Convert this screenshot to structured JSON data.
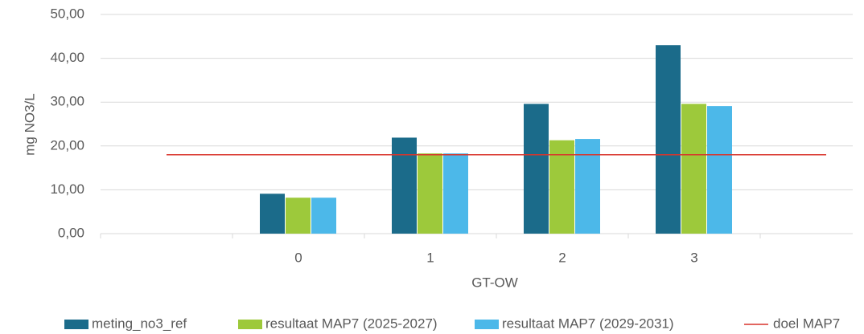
{
  "chart_data": {
    "type": "bar",
    "categories": [
      null,
      "0",
      "1",
      "2",
      "3",
      null
    ],
    "series": [
      {
        "name": "meting_no3_ref",
        "color": "#1b6b8a",
        "values": [
          null,
          9.1,
          21.9,
          29.6,
          43.0,
          null
        ]
      },
      {
        "name": "resultaat MAP7 (2025-2027)",
        "color": "#9dc93b",
        "values": [
          null,
          8.2,
          18.3,
          21.3,
          29.6,
          null
        ]
      },
      {
        "name": "resultaat MAP7 (2029-2031)",
        "color": "#4cb8e9",
        "values": [
          null,
          8.2,
          18.3,
          21.6,
          29.1,
          null
        ]
      },
      {
        "name": "doel MAP7",
        "color": "#d9342b",
        "type": "line",
        "values": [
          18,
          18,
          18,
          18,
          18,
          18
        ]
      }
    ],
    "ylim": [
      0,
      50
    ],
    "yticks": [
      {
        "value": 0,
        "label": "0,00"
      },
      {
        "value": 10,
        "label": "10,00"
      },
      {
        "value": 20,
        "label": "20,00"
      },
      {
        "value": 30,
        "label": "30,00"
      },
      {
        "value": 40,
        "label": "40,00"
      },
      {
        "value": 50,
        "label": "50,00"
      }
    ],
    "y_label": "mg NO3/L",
    "x_label": "GT-OW",
    "grid": true,
    "legend": "bottom"
  }
}
